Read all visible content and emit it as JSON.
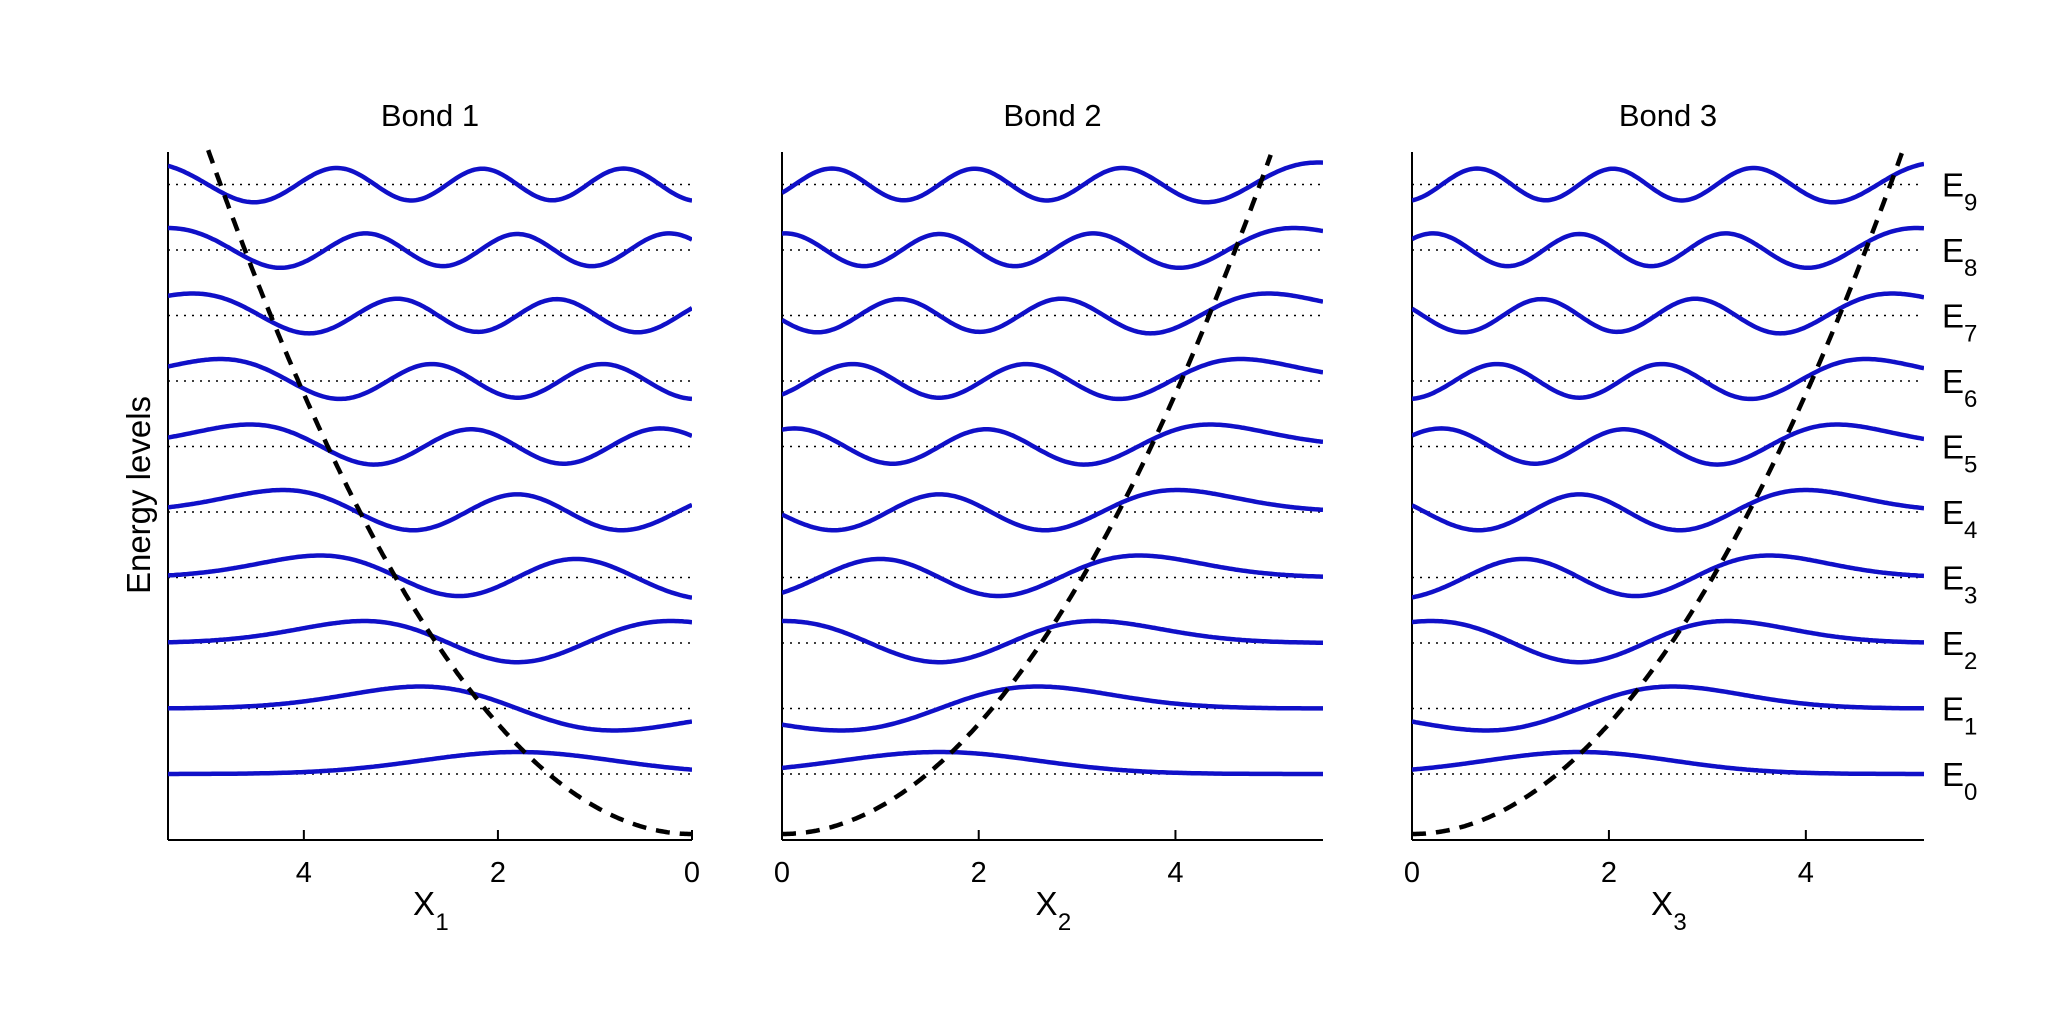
{
  "chart_data": {
    "type": "line",
    "ylabel": "Energy levels",
    "grid": false,
    "levels": [
      {
        "label": "E",
        "sub": "0"
      },
      {
        "label": "E",
        "sub": "1"
      },
      {
        "label": "E",
        "sub": "2"
      },
      {
        "label": "E",
        "sub": "3"
      },
      {
        "label": "E",
        "sub": "4"
      },
      {
        "label": "E",
        "sub": "5"
      },
      {
        "label": "E",
        "sub": "6"
      },
      {
        "label": "E",
        "sub": "7"
      },
      {
        "label": "E",
        "sub": "8"
      },
      {
        "label": "E",
        "sub": "9"
      }
    ],
    "colors": {
      "wavefunction": "#1010c8",
      "potential": "#000000",
      "baseline": "#000000",
      "axes": "#000000"
    },
    "panels": [
      {
        "title": "Bond 1",
        "xlabel": "X",
        "xlabel_sub": "1",
        "xlim": [
          5.4,
          0
        ],
        "reversed": true,
        "tick_values": [
          4,
          2,
          0
        ],
        "tick_labels": [
          "4",
          "2",
          "0"
        ],
        "potential": {
          "center": 0,
          "curvature": 0.42
        },
        "wave_center": 1.8,
        "wave_scale": 1.0
      },
      {
        "title": "Bond 2",
        "xlabel": "X",
        "xlabel_sub": "2",
        "xlim": [
          0,
          5.5
        ],
        "reversed": false,
        "tick_values": [
          0,
          2,
          4
        ],
        "tick_labels": [
          "0",
          "2",
          "4"
        ],
        "potential": {
          "center": 0,
          "curvature": 0.42
        },
        "wave_center": 1.6,
        "wave_scale": 1.0
      },
      {
        "title": "Bond 3",
        "xlabel": "X",
        "xlabel_sub": "3",
        "xlim": [
          0,
          5.2
        ],
        "reversed": false,
        "tick_values": [
          0,
          2,
          4
        ],
        "tick_labels": [
          "0",
          "2",
          "4"
        ],
        "potential": {
          "center": 0,
          "curvature": 0.42
        },
        "wave_center": 1.7,
        "wave_scale": 0.95
      }
    ]
  }
}
